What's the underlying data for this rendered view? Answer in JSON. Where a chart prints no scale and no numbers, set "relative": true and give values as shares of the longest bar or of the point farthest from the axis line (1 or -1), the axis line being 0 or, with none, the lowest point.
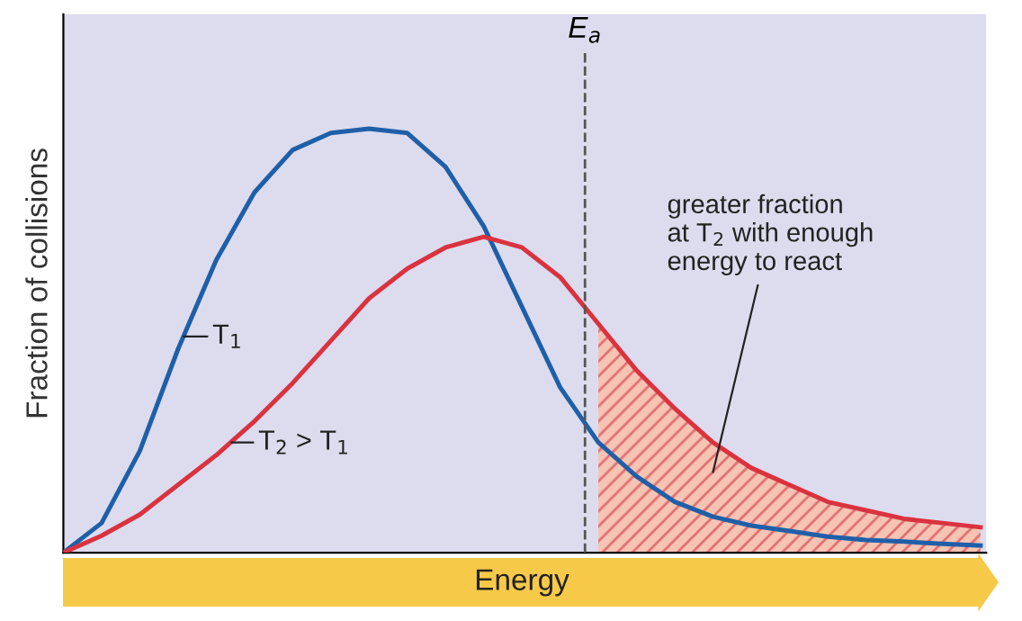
{
  "chart_data": {
    "type": "line",
    "xlabel": "Energy",
    "ylabel": "Fraction of collisions",
    "relative": true,
    "categories": [
      null,
      null,
      null,
      null,
      null,
      null,
      null,
      null,
      null,
      null,
      null,
      null,
      null,
      null,
      null,
      null,
      null,
      null,
      null,
      null,
      null,
      null,
      null,
      null,
      null
    ],
    "series": [
      {
        "name": "T$_{1}$",
        "color": "#1f5fa8",
        "values": [
          0,
          0.07,
          0.24,
          0.48,
          0.69,
          0.85,
          0.95,
          0.99,
          1.0,
          0.99,
          0.91,
          0.77,
          0.58,
          0.39,
          0.26,
          0.18,
          0.12,
          0.085,
          0.064,
          0.051,
          0.038,
          0.03,
          0.026,
          0.021,
          0.017
        ]
      },
      {
        "name": "T$_{2}$ > T$_{1}$",
        "color": "#d9333f",
        "values": [
          0,
          0.04,
          0.09,
          0.16,
          0.23,
          0.31,
          0.4,
          0.5,
          0.6,
          0.67,
          0.72,
          0.745,
          0.72,
          0.65,
          0.54,
          0.43,
          0.34,
          0.26,
          0.2,
          0.16,
          0.12,
          0.1,
          0.08,
          0.07,
          0.06
        ]
      },
      {
        "type": "area",
        "color": "#f7c4b4",
        "values": [
          null,
          null,
          null,
          null,
          null,
          null,
          null,
          null,
          null,
          null,
          null,
          null,
          null,
          null,
          0.54,
          0.43,
          0.34,
          0.26,
          0.2,
          0.16,
          0.12,
          0.1,
          0.08,
          0.07,
          0.06
        ]
      }
    ],
    "annotations": [
      "E$_{a}$",
      "greater fraction\nat T$_{2}$ with enough\nenergy to react"
    ]
  }
}
